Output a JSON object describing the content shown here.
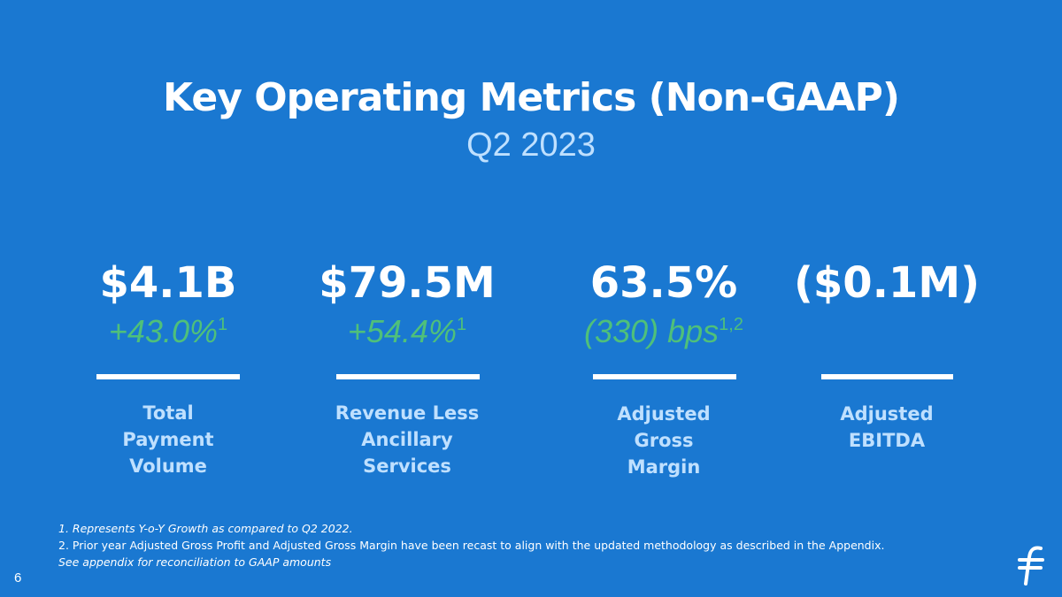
{
  "slide": {
    "title": "Key Operating Metrics (Non-GAAP)",
    "subtitle": "Q2 2023",
    "page_number": "6"
  },
  "metrics": [
    {
      "value": "$4.1B",
      "growth": "+43.0%",
      "growth_note": "1",
      "label_lines": [
        "Total",
        "Payment",
        "Volume"
      ]
    },
    {
      "value": "$79.5M",
      "growth": "+54.4%",
      "growth_note": "1",
      "label_lines": [
        "Revenue Less",
        "Ancillary",
        "Services"
      ]
    },
    {
      "value": "63.5%",
      "growth": "(330) bps",
      "growth_note": "1,2",
      "label_lines": [
        "Adjusted",
        "Gross",
        "Margin"
      ]
    },
    {
      "value": "($0.1M)",
      "growth": "",
      "growth_note": "",
      "label_lines": [
        "Adjusted",
        "EBITDA"
      ]
    }
  ],
  "footnotes": {
    "note1": "1. Represents Y-o-Y Growth as compared to Q2 2022.",
    "note2": "2. Prior year Adjusted Gross Profit and Adjusted Gross Margin have been recast to align with the updated methodology as described in the Appendix.",
    "note3": "See appendix for reconciliation to GAAP amounts"
  },
  "colors": {
    "background": "#1a78d1",
    "growth_green": "#4fc07a",
    "light_blue_text": "#bfe0ff",
    "white": "#ffffff"
  },
  "icons": {
    "logo": "flywire-logo-icon"
  }
}
